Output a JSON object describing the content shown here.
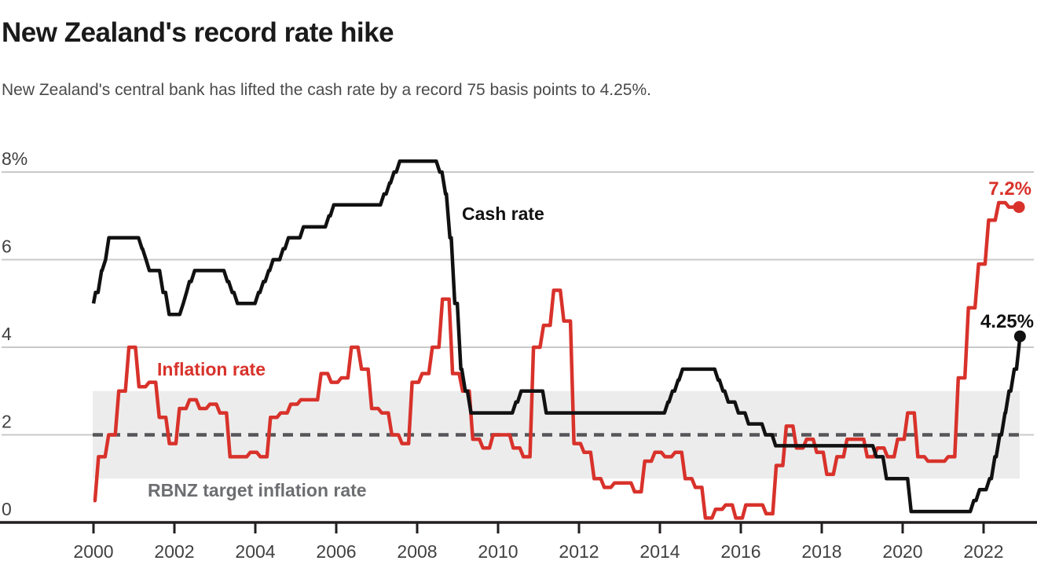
{
  "header": {
    "title": "New Zealand's record rate hike",
    "subtitle": "New Zealand's central bank has lifted the cash rate by a record 75 basis points to 4.25%."
  },
  "chart_data": {
    "type": "line",
    "title": "New Zealand's record rate hike",
    "x_axis": {
      "ticks": [
        2000,
        2002,
        2004,
        2006,
        2008,
        2010,
        2012,
        2014,
        2016,
        2018,
        2020,
        2022
      ],
      "range": [
        2000,
        2023
      ]
    },
    "y_axis": {
      "ticks": [
        {
          "v": 0,
          "label": "0"
        },
        {
          "v": 2,
          "label": "2"
        },
        {
          "v": 4,
          "label": "4"
        },
        {
          "v": 6,
          "label": "6"
        },
        {
          "v": 8,
          "label": "8%"
        }
      ],
      "range": [
        0,
        8.4
      ],
      "unit": "percent"
    },
    "band": {
      "label": "RBNZ target inflation rate",
      "from": 1,
      "to": 3,
      "midline": 2,
      "fill": "#ececec",
      "midline_color": "#56565a"
    },
    "grid": {
      "color": "#c9c9c9",
      "axis_color": "#231f20",
      "tick_label_color": "#414141"
    },
    "series": [
      {
        "name": "Cash rate",
        "color": "#111111",
        "end_label": "4.25%",
        "end_value": 4.25,
        "points": [
          [
            2000.0,
            5.0
          ],
          [
            2000.05,
            5.25
          ],
          [
            2000.2,
            5.75
          ],
          [
            2000.3,
            6.0
          ],
          [
            2000.38,
            6.5
          ],
          [
            2001.2,
            6.25
          ],
          [
            2001.3,
            6.0
          ],
          [
            2001.38,
            5.75
          ],
          [
            2001.72,
            5.25
          ],
          [
            2001.87,
            4.75
          ],
          [
            2002.22,
            5.0
          ],
          [
            2002.3,
            5.25
          ],
          [
            2002.37,
            5.5
          ],
          [
            2002.5,
            5.75
          ],
          [
            2003.31,
            5.5
          ],
          [
            2003.43,
            5.25
          ],
          [
            2003.56,
            5.0
          ],
          [
            2004.08,
            5.25
          ],
          [
            2004.2,
            5.5
          ],
          [
            2004.33,
            5.75
          ],
          [
            2004.44,
            6.0
          ],
          [
            2004.69,
            6.25
          ],
          [
            2004.82,
            6.5
          ],
          [
            2005.19,
            6.75
          ],
          [
            2005.82,
            7.0
          ],
          [
            2005.94,
            7.25
          ],
          [
            2007.18,
            7.5
          ],
          [
            2007.32,
            7.75
          ],
          [
            2007.43,
            8.0
          ],
          [
            2007.57,
            8.25
          ],
          [
            2008.56,
            8.0
          ],
          [
            2008.7,
            7.5
          ],
          [
            2008.81,
            6.5
          ],
          [
            2008.93,
            5.0
          ],
          [
            2009.08,
            3.5
          ],
          [
            2009.19,
            3.0
          ],
          [
            2009.33,
            2.5
          ],
          [
            2010.44,
            2.75
          ],
          [
            2010.57,
            3.0
          ],
          [
            2011.19,
            2.5
          ],
          [
            2014.2,
            2.75
          ],
          [
            2014.31,
            3.0
          ],
          [
            2014.45,
            3.25
          ],
          [
            2014.56,
            3.5
          ],
          [
            2015.44,
            3.25
          ],
          [
            2015.56,
            3.0
          ],
          [
            2015.69,
            2.75
          ],
          [
            2015.94,
            2.5
          ],
          [
            2016.19,
            2.25
          ],
          [
            2016.61,
            2.0
          ],
          [
            2016.86,
            1.75
          ],
          [
            2019.35,
            1.5
          ],
          [
            2019.6,
            1.0
          ],
          [
            2020.21,
            0.25
          ],
          [
            2021.76,
            0.5
          ],
          [
            2021.9,
            0.75
          ],
          [
            2022.15,
            1.0
          ],
          [
            2022.28,
            1.5
          ],
          [
            2022.4,
            2.0
          ],
          [
            2022.53,
            2.5
          ],
          [
            2022.63,
            3.0
          ],
          [
            2022.76,
            3.5
          ],
          [
            2022.9,
            4.25
          ]
        ]
      },
      {
        "name": "Inflation rate",
        "color": "#d8322b",
        "end_label": "7.2%",
        "end_value": 7.2,
        "points": [
          [
            2000.0,
            0.5
          ],
          [
            2000.125,
            1.5
          ],
          [
            2000.375,
            2.0
          ],
          [
            2000.625,
            3.0
          ],
          [
            2000.875,
            4.0
          ],
          [
            2001.125,
            3.1
          ],
          [
            2001.375,
            3.2
          ],
          [
            2001.625,
            2.4
          ],
          [
            2001.875,
            1.8
          ],
          [
            2002.125,
            2.6
          ],
          [
            2002.375,
            2.8
          ],
          [
            2002.625,
            2.6
          ],
          [
            2002.875,
            2.7
          ],
          [
            2003.125,
            2.5
          ],
          [
            2003.375,
            1.5
          ],
          [
            2003.625,
            1.5
          ],
          [
            2003.875,
            1.6
          ],
          [
            2004.125,
            1.5
          ],
          [
            2004.375,
            2.4
          ],
          [
            2004.625,
            2.5
          ],
          [
            2004.875,
            2.7
          ],
          [
            2005.125,
            2.8
          ],
          [
            2005.375,
            2.8
          ],
          [
            2005.625,
            3.4
          ],
          [
            2005.875,
            3.2
          ],
          [
            2006.125,
            3.3
          ],
          [
            2006.375,
            4.0
          ],
          [
            2006.625,
            3.5
          ],
          [
            2006.875,
            2.6
          ],
          [
            2007.125,
            2.5
          ],
          [
            2007.375,
            2.0
          ],
          [
            2007.625,
            1.8
          ],
          [
            2007.875,
            3.2
          ],
          [
            2008.125,
            3.4
          ],
          [
            2008.375,
            4.0
          ],
          [
            2008.625,
            5.1
          ],
          [
            2008.875,
            3.4
          ],
          [
            2009.125,
            3.0
          ],
          [
            2009.375,
            1.9
          ],
          [
            2009.625,
            1.7
          ],
          [
            2009.875,
            2.0
          ],
          [
            2010.125,
            2.0
          ],
          [
            2010.375,
            1.7
          ],
          [
            2010.625,
            1.5
          ],
          [
            2010.875,
            4.0
          ],
          [
            2011.125,
            4.5
          ],
          [
            2011.375,
            5.3
          ],
          [
            2011.625,
            4.6
          ],
          [
            2011.875,
            1.8
          ],
          [
            2012.125,
            1.6
          ],
          [
            2012.375,
            1.0
          ],
          [
            2012.625,
            0.8
          ],
          [
            2012.875,
            0.9
          ],
          [
            2013.125,
            0.9
          ],
          [
            2013.375,
            0.7
          ],
          [
            2013.625,
            1.4
          ],
          [
            2013.875,
            1.6
          ],
          [
            2014.125,
            1.5
          ],
          [
            2014.375,
            1.6
          ],
          [
            2014.625,
            1.0
          ],
          [
            2014.875,
            0.8
          ],
          [
            2015.125,
            0.1
          ],
          [
            2015.375,
            0.3
          ],
          [
            2015.625,
            0.4
          ],
          [
            2015.875,
            0.1
          ],
          [
            2016.125,
            0.4
          ],
          [
            2016.375,
            0.4
          ],
          [
            2016.625,
            0.2
          ],
          [
            2016.875,
            1.3
          ],
          [
            2017.125,
            2.2
          ],
          [
            2017.375,
            1.7
          ],
          [
            2017.625,
            1.9
          ],
          [
            2017.875,
            1.6
          ],
          [
            2018.125,
            1.1
          ],
          [
            2018.375,
            1.5
          ],
          [
            2018.625,
            1.9
          ],
          [
            2018.875,
            1.9
          ],
          [
            2019.125,
            1.5
          ],
          [
            2019.375,
            1.7
          ],
          [
            2019.625,
            1.5
          ],
          [
            2019.875,
            1.9
          ],
          [
            2020.125,
            2.5
          ],
          [
            2020.375,
            1.5
          ],
          [
            2020.625,
            1.4
          ],
          [
            2020.875,
            1.4
          ],
          [
            2021.125,
            1.5
          ],
          [
            2021.375,
            3.3
          ],
          [
            2021.625,
            4.9
          ],
          [
            2021.875,
            5.9
          ],
          [
            2022.125,
            6.9
          ],
          [
            2022.375,
            7.3
          ],
          [
            2022.625,
            7.2
          ],
          [
            2022.875,
            7.2
          ]
        ]
      }
    ]
  }
}
